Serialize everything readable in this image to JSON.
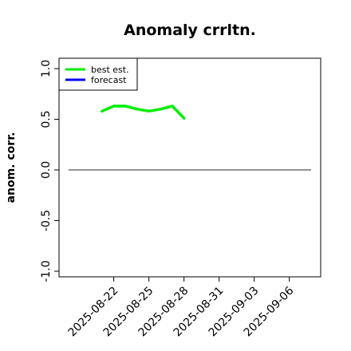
{
  "chart_data": {
    "type": "line",
    "title": "Anomaly crrltn.",
    "xlabel": "",
    "ylabel": "anom. corr.",
    "ylim": [
      -1.0,
      1.0
    ],
    "xlim": [
      "2025-08-18",
      "2025-09-08"
    ],
    "x_ticks": [
      "2025-08-22",
      "2025-08-25",
      "2025-08-28",
      "2025-08-31",
      "2025-09-03",
      "2025-09-06"
    ],
    "y_ticks": [
      "-1.0",
      "-0.5",
      "0.0",
      "0.5",
      "1.0"
    ],
    "highlighted_x_tick": "2025-08-28",
    "highlight_color": "#1a8a1a",
    "grid": false,
    "legend_position": "top-left",
    "zero_line": {
      "y": 0.0,
      "color": "#555555"
    },
    "series": [
      {
        "name": "best est.",
        "color": "#00ee00",
        "x": [
          "2025-08-21",
          "2025-08-22",
          "2025-08-23",
          "2025-08-24",
          "2025-08-25",
          "2025-08-26",
          "2025-08-27",
          "2025-08-28"
        ],
        "y": [
          0.58,
          0.63,
          0.63,
          0.6,
          0.58,
          0.6,
          0.63,
          0.51
        ]
      },
      {
        "name": "forecast",
        "color": "#0000ff",
        "x": [],
        "y": []
      }
    ]
  }
}
